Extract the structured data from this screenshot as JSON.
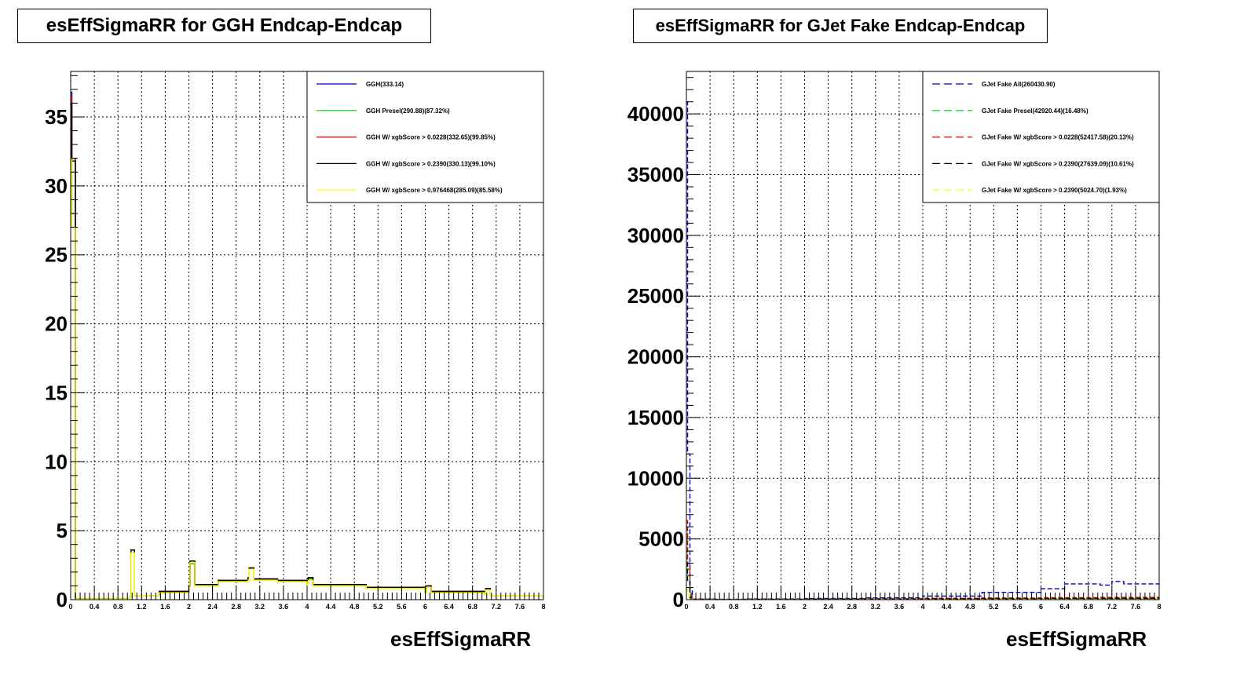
{
  "chart_data": [
    {
      "type": "line",
      "title": "esEffSigmaRR for GGH Endcap-Endcap",
      "xlabel": "esEffSigmaRR",
      "ylabel": "",
      "xlim": [
        0,
        8
      ],
      "ylim": [
        0,
        38.3
      ],
      "grid": true,
      "legend_position": "top-right",
      "x_ticks": [
        "0",
        "0.4",
        "0.8",
        "1.2",
        "1.6",
        "2",
        "2.4",
        "2.8",
        "3.2",
        "3.6",
        "4",
        "4.4",
        "4.8",
        "5.2",
        "5.6",
        "6",
        "6.4",
        "6.8",
        "7.2",
        "7.6",
        "8"
      ],
      "y_ticks": [
        "0",
        "5",
        "10",
        "15",
        "20",
        "25",
        "30",
        "35"
      ],
      "y_tick_values": [
        0,
        5,
        10,
        15,
        20,
        25,
        30,
        35
      ],
      "series": [
        {
          "name": "GGH(333.14)",
          "color": "#0000cc",
          "x": [
            0,
            0.02,
            0.08,
            0.5,
            1.0,
            1.02,
            1.08,
            1.5,
            2.0,
            2.02,
            2.1,
            2.5,
            3.0,
            3.02,
            3.1,
            3.5,
            4.0,
            4.02,
            4.1,
            5.0,
            6.0,
            6.02,
            6.1,
            7.0,
            7.02,
            7.1,
            8.0
          ],
          "y": [
            36.8,
            32.0,
            0.1,
            0.1,
            0.2,
            3.6,
            0.3,
            0.6,
            1.0,
            2.8,
            1.1,
            1.4,
            1.6,
            2.3,
            1.5,
            1.4,
            1.2,
            1.6,
            1.1,
            0.9,
            0.6,
            1.0,
            0.6,
            0.4,
            0.8,
            0.3,
            0.15
          ]
        },
        {
          "name": "GGH Presel(290.88)(87.32%)",
          "color": "#00cc00",
          "x": [
            0,
            0.02,
            0.08,
            0.5,
            1.0,
            1.02,
            1.08,
            1.5,
            2.0,
            2.02,
            2.1,
            2.5,
            3.0,
            3.02,
            3.1,
            3.5,
            4.0,
            4.02,
            4.1,
            5.0,
            6.0,
            6.02,
            6.1,
            7.0,
            7.02,
            7.1,
            8.0
          ],
          "y": [
            32.0,
            28.0,
            0.1,
            0.1,
            0.2,
            3.4,
            0.3,
            0.5,
            0.9,
            2.6,
            1.0,
            1.3,
            1.5,
            2.2,
            1.4,
            1.3,
            1.1,
            1.5,
            1.0,
            0.8,
            0.5,
            0.9,
            0.5,
            0.35,
            0.7,
            0.3,
            0.1
          ]
        },
        {
          "name": "GGH W/ xgbScore > 0.0228(332.65)(99.85%)",
          "color": "#dd0000",
          "x": [
            0,
            0.02,
            0.08,
            0.5,
            1.0,
            1.02,
            1.08,
            1.5,
            2.0,
            2.02,
            2.1,
            2.5,
            3.0,
            3.02,
            3.1,
            3.5,
            4.0,
            4.02,
            4.1,
            5.0,
            6.0,
            6.02,
            6.1,
            7.0,
            7.02,
            7.1,
            8.0
          ],
          "y": [
            36.5,
            32.0,
            0.1,
            0.1,
            0.2,
            3.6,
            0.3,
            0.6,
            1.0,
            2.8,
            1.1,
            1.4,
            1.6,
            2.3,
            1.5,
            1.4,
            1.2,
            1.6,
            1.1,
            0.9,
            0.6,
            1.0,
            0.6,
            0.4,
            0.8,
            0.3,
            0.15
          ]
        },
        {
          "name": "GGH W/ xgbScore > 0.2390(330.13)(99.10%)",
          "color": "#000000",
          "x": [
            0,
            0.02,
            0.08,
            0.5,
            1.0,
            1.02,
            1.08,
            1.5,
            2.0,
            2.02,
            2.1,
            2.5,
            3.0,
            3.02,
            3.1,
            3.5,
            4.0,
            4.02,
            4.1,
            5.0,
            6.0,
            6.02,
            6.1,
            7.0,
            7.02,
            7.1,
            8.0
          ],
          "y": [
            36.0,
            31.8,
            0.1,
            0.1,
            0.2,
            3.6,
            0.3,
            0.6,
            1.0,
            2.8,
            1.1,
            1.4,
            1.6,
            2.3,
            1.5,
            1.4,
            1.2,
            1.6,
            1.1,
            0.9,
            0.6,
            1.0,
            0.6,
            0.4,
            0.8,
            0.3,
            0.15
          ]
        },
        {
          "name": "GGH W/ xgbScore > 0.976468(285.09)(85.58%)",
          "color": "#ffff00",
          "x": [
            0,
            0.02,
            0.08,
            0.5,
            1.0,
            1.02,
            1.08,
            1.5,
            2.0,
            2.02,
            2.1,
            2.5,
            3.0,
            3.02,
            3.1,
            3.5,
            4.0,
            4.02,
            4.1,
            5.0,
            6.0,
            6.02,
            6.1,
            7.0,
            7.02,
            7.1,
            8.0
          ],
          "y": [
            32.0,
            27.0,
            0.1,
            0.1,
            0.2,
            3.4,
            0.3,
            0.5,
            0.9,
            2.7,
            1.0,
            1.3,
            1.4,
            2.2,
            1.4,
            1.3,
            1.1,
            1.4,
            1.0,
            0.8,
            0.5,
            0.9,
            0.5,
            0.35,
            0.7,
            0.3,
            0.1
          ]
        }
      ]
    },
    {
      "type": "line",
      "title": "esEffSigmaRR for GJet Fake Endcap-Endcap",
      "xlabel": "esEffSigmaRR",
      "ylabel": "",
      "xlim": [
        0,
        8
      ],
      "ylim": [
        0,
        43500
      ],
      "grid": true,
      "legend_position": "top-right",
      "x_ticks": [
        "0",
        "0.4",
        "0.8",
        "1.2",
        "1.6",
        "2",
        "2.4",
        "2.8",
        "3.2",
        "3.6",
        "4",
        "4.4",
        "4.8",
        "5.2",
        "5.6",
        "6",
        "6.4",
        "6.8",
        "7.2",
        "7.6",
        "8"
      ],
      "y_ticks": [
        "0",
        "5000",
        "10000",
        "15000",
        "20000",
        "25000",
        "30000",
        "35000",
        "40000"
      ],
      "y_tick_values": [
        0,
        5000,
        10000,
        15000,
        20000,
        25000,
        30000,
        35000,
        40000
      ],
      "series": [
        {
          "name": "GJet Fake All(260430.90)",
          "color": "#0000cc",
          "x": [
            0,
            0.02,
            0.06,
            0.1,
            0.5,
            1.0,
            2.0,
            3.0,
            4.0,
            5.0,
            6.0,
            6.4,
            7.0,
            7.2,
            7.4,
            8.0
          ],
          "y": [
            41000,
            12000,
            800,
            50,
            30,
            60,
            100,
            150,
            300,
            600,
            900,
            1300,
            1200,
            1500,
            1300,
            1100
          ]
        },
        {
          "name": "GJet Fake Presel(42920.44)(16.48%)",
          "color": "#00cc00",
          "x": [
            0,
            0.02,
            0.06,
            0.1,
            0.5,
            1.0,
            2.0,
            3.0,
            4.0,
            5.0,
            6.0,
            7.0,
            8.0
          ],
          "y": [
            6000,
            2500,
            200,
            20,
            10,
            20,
            30,
            50,
            70,
            90,
            100,
            110,
            110
          ]
        },
        {
          "name": "GJet Fake W/ xgbScore > 0.0228(52417.58)(20.13%)",
          "color": "#dd0000",
          "x": [
            0,
            0.02,
            0.06,
            0.1,
            0.5,
            1.0,
            2.0,
            3.0,
            4.0,
            5.0,
            6.0,
            7.0,
            8.0
          ],
          "y": [
            6500,
            3000,
            300,
            30,
            10,
            30,
            50,
            80,
            110,
            140,
            170,
            190,
            200
          ]
        },
        {
          "name": "GJet Fake W/ xgbScore > 0.2390(27639.09)(10.61%)",
          "color": "#000000",
          "x": [
            0,
            0.02,
            0.06,
            0.1,
            0.5,
            1.0,
            2.0,
            3.0,
            4.0,
            5.0,
            6.0,
            7.0,
            8.0
          ],
          "y": [
            3000,
            1500,
            150,
            15,
            5,
            15,
            25,
            40,
            60,
            80,
            90,
            100,
            100
          ]
        },
        {
          "name": "GJet Fake W/ xgbScore > 0.2390(5024.70)(1.93%)",
          "color": "#ffff00",
          "x": [
            0,
            0.02,
            0.06,
            0.1,
            0.5,
            1.0,
            2.0,
            3.0,
            4.0,
            5.0,
            6.0,
            7.0,
            8.0
          ],
          "y": [
            900,
            400,
            60,
            5,
            2,
            5,
            8,
            12,
            15,
            18,
            20,
            22,
            22
          ]
        }
      ]
    }
  ]
}
